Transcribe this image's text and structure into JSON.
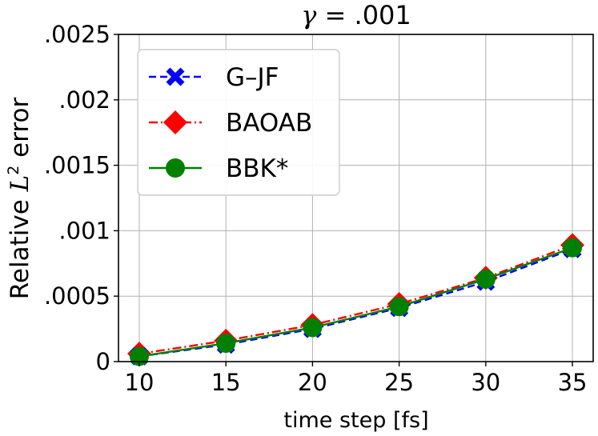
{
  "chart_data": {
    "type": "line",
    "title_math": {
      "symbol": "γ",
      "rest": " = .001"
    },
    "xlabel": "time step [fs]",
    "ylabel": {
      "pre": "Relative ",
      "math": "L",
      "sup": "2",
      "post": " error"
    },
    "x": [
      10,
      15,
      20,
      25,
      30,
      35
    ],
    "xlim": [
      8.8,
      36.2
    ],
    "ylim": [
      0,
      0.0025
    ],
    "x_ticks": [
      {
        "value": 10,
        "label": "10"
      },
      {
        "value": 15,
        "label": "15"
      },
      {
        "value": 20,
        "label": "20"
      },
      {
        "value": 25,
        "label": "25"
      },
      {
        "value": 30,
        "label": "30"
      },
      {
        "value": 35,
        "label": "35"
      }
    ],
    "y_ticks": [
      {
        "value": 0,
        "label": "0"
      },
      {
        "value": 0.0005,
        "label": ".0005"
      },
      {
        "value": 0.001,
        "label": ".001"
      },
      {
        "value": 0.0015,
        "label": ".0015"
      },
      {
        "value": 0.002,
        "label": ".002"
      },
      {
        "value": 0.0025,
        "label": ".0025"
      }
    ],
    "grid": true,
    "legend_position": "top-left",
    "series": [
      {
        "name": "G–JF",
        "color": "#0000ff",
        "marker": "x",
        "dash": "dashed",
        "values": [
          4e-05,
          0.00013,
          0.00025,
          0.00041,
          0.00061,
          0.00086
        ]
      },
      {
        "name": "BAOAB",
        "color": "#ff0000",
        "marker": "diamond",
        "dash": "dashdot",
        "values": [
          6e-05,
          0.00016,
          0.00028,
          0.00044,
          0.00064,
          0.00089
        ]
      },
      {
        "name": "BBK*",
        "color": "#008000",
        "marker": "circle",
        "dash": "solid",
        "values": [
          4e-05,
          0.00014,
          0.00026,
          0.00042,
          0.00063,
          0.00087
        ]
      }
    ]
  }
}
